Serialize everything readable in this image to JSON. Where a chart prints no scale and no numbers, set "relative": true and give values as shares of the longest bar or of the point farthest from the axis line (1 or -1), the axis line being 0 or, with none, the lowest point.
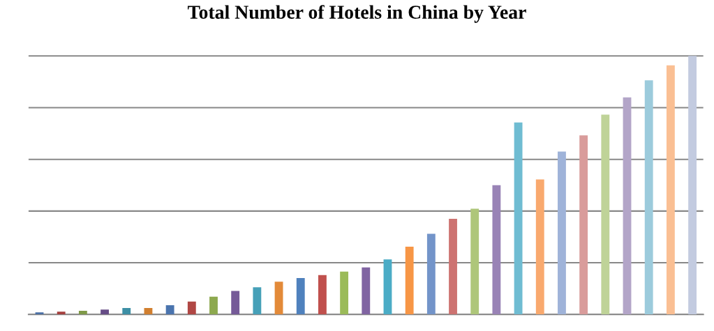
{
  "chart_data": {
    "type": "bar",
    "title": "Total Number of Hotels in China by Year",
    "relative": true,
    "grid": "y",
    "categories": [
      null,
      null,
      null,
      null,
      null,
      null,
      null,
      null,
      null,
      null,
      null,
      null,
      null,
      null,
      null,
      null,
      null,
      null,
      null,
      null,
      null,
      null,
      null,
      null,
      null,
      null,
      null,
      null,
      null,
      null,
      null
    ],
    "values": [
      0.008,
      0.011,
      0.014,
      0.019,
      0.025,
      0.025,
      0.036,
      0.05,
      0.069,
      0.091,
      0.105,
      0.127,
      0.141,
      0.152,
      0.166,
      0.182,
      0.213,
      0.262,
      0.312,
      0.37,
      0.409,
      0.5,
      0.743,
      0.522,
      0.63,
      0.693,
      0.773,
      0.84,
      0.906,
      0.964,
      1
    ],
    "colors": [
      "#4a6fa5",
      "#a5403e",
      "#7f9a48",
      "#664d86",
      "#3d8fa5",
      "#d17f2f",
      "#4a74ae",
      "#b04744",
      "#8da94f",
      "#755a98",
      "#46a0b8",
      "#e38a39",
      "#4f81bd",
      "#c0504d",
      "#9bbb59",
      "#8064a2",
      "#4bacc6",
      "#f79646",
      "#7394c9",
      "#cd7371",
      "#aec67a",
      "#9983b6",
      "#6fbcd2",
      "#f9a96e",
      "#9fb3d9",
      "#d99c9b",
      "#bfd398",
      "#b3a5c8",
      "#9ccbdc",
      "#fabf93",
      "#c3cbe0"
    ]
  }
}
